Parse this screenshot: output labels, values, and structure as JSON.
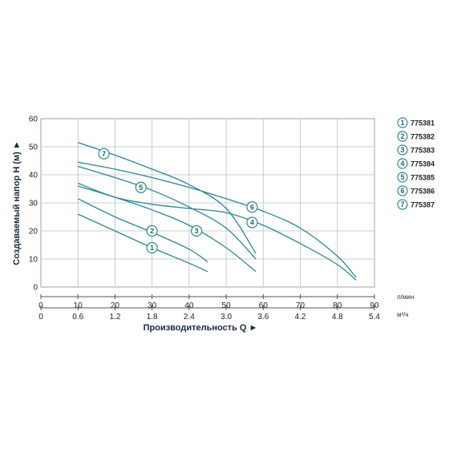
{
  "chart_data": {
    "type": "line",
    "xlabel": "Производительность Q ►",
    "ylabel": "Создаваемый напор H (м) ►",
    "x_unit_top": "л/мин",
    "x_unit_bottom": "м³/ч",
    "xlim": [
      0,
      90
    ],
    "ylim": [
      0,
      60
    ],
    "x_ticks": [
      0,
      10,
      20,
      30,
      40,
      50,
      60,
      70,
      80,
      90
    ],
    "x_ticks_m3h": [
      "0",
      "0.6",
      "1.2",
      "1.8",
      "2.4",
      "3.0",
      "3.6",
      "4.2",
      "4.8",
      "5.4"
    ],
    "y_ticks": [
      0,
      10,
      20,
      30,
      40,
      50,
      60
    ],
    "grid": true,
    "legend_position": "right",
    "series_color": "#2e8595",
    "series": [
      {
        "name": "775381",
        "marker": "1",
        "x": [
          10,
          20,
          30,
          40,
          45
        ],
        "y": [
          26,
          20,
          14,
          8.5,
          5.5
        ]
      },
      {
        "name": "775382",
        "marker": "2",
        "x": [
          10,
          20,
          30,
          40,
          45
        ],
        "y": [
          31.5,
          25,
          19.5,
          13.5,
          9
        ]
      },
      {
        "name": "775383",
        "marker": "3",
        "x": [
          10,
          20,
          30,
          40,
          50,
          58
        ],
        "y": [
          36,
          32,
          27.5,
          22,
          14,
          5.5
        ]
      },
      {
        "name": "775384",
        "marker": "4",
        "x": [
          10,
          20,
          30,
          40,
          50,
          60,
          70,
          80,
          85
        ],
        "y": [
          37,
          32,
          29.5,
          28,
          26.5,
          22,
          15.5,
          8,
          2.5
        ]
      },
      {
        "name": "775385",
        "marker": "5",
        "x": [
          10,
          20,
          30,
          40,
          50,
          58
        ],
        "y": [
          43,
          39,
          34.5,
          28.5,
          21,
          10
        ]
      },
      {
        "name": "775386",
        "marker": "6",
        "x": [
          10,
          20,
          30,
          40,
          50,
          60,
          70,
          80,
          85
        ],
        "y": [
          44.5,
          42,
          39,
          35.5,
          31.5,
          27,
          21,
          11,
          3.5
        ]
      },
      {
        "name": "775387",
        "marker": "7",
        "x": [
          10,
          20,
          30,
          40,
          50,
          58
        ],
        "y": [
          51.5,
          47,
          42,
          36.5,
          28,
          12
        ]
      }
    ],
    "marker_positions": [
      {
        "label": "1",
        "x": 30,
        "y": 14
      },
      {
        "label": "2",
        "x": 30,
        "y": 20
      },
      {
        "label": "3",
        "x": 42,
        "y": 20
      },
      {
        "label": "4",
        "x": 57,
        "y": 23
      },
      {
        "label": "5",
        "x": 27,
        "y": 35.5
      },
      {
        "label": "6",
        "x": 57,
        "y": 28.5
      },
      {
        "label": "7",
        "x": 17,
        "y": 47.5
      }
    ]
  }
}
